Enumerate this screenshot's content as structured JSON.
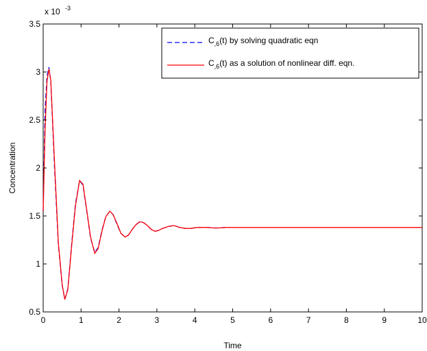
{
  "chart_data": {
    "type": "line",
    "title": "",
    "xlabel": "Time",
    "ylabel": "Concentration",
    "xlim": [
      0,
      10
    ],
    "ylim": [
      0.5,
      3.5
    ],
    "y_multiplier_base": "x 10",
    "y_multiplier_exponent": "-3",
    "xticks": [
      "0",
      "1",
      "2",
      "3",
      "4",
      "5",
      "6",
      "7",
      "8",
      "9",
      "10"
    ],
    "yticks": [
      "0.5",
      "1",
      "1.5",
      "2",
      "2.5",
      "3",
      "3.5"
    ],
    "grid": false,
    "legend_position": "top-right",
    "series": [
      {
        "name_main": "C",
        "name_sub": ",6",
        "name_rest": "(t) by solving quadratic eqn",
        "color": "#0000ff",
        "style": "dashed",
        "x": [
          0,
          0.05,
          0.1,
          0.15,
          0.2,
          0.3,
          0.4,
          0.5,
          0.57,
          0.65,
          0.75,
          0.85,
          0.96,
          1.05,
          1.15,
          1.25,
          1.36,
          1.45,
          1.55,
          1.65,
          1.76,
          1.85,
          1.95,
          2.05,
          2.16,
          2.25,
          2.35,
          2.45,
          2.55,
          2.65,
          2.75,
          2.85,
          2.95,
          3.05,
          3.15,
          3.3,
          3.45,
          3.6,
          3.75,
          3.9,
          4.05,
          4.2,
          4.35,
          4.5,
          4.65,
          4.8,
          4.9
        ],
        "y": [
          1.55,
          2.6,
          2.95,
          3.05,
          2.9,
          2.0,
          1.2,
          0.78,
          0.63,
          0.74,
          1.2,
          1.62,
          1.87,
          1.82,
          1.55,
          1.27,
          1.12,
          1.17,
          1.35,
          1.49,
          1.55,
          1.51,
          1.41,
          1.32,
          1.28,
          1.3,
          1.36,
          1.41,
          1.44,
          1.43,
          1.4,
          1.36,
          1.34,
          1.35,
          1.37,
          1.39,
          1.4,
          1.38,
          1.37,
          1.37,
          1.38,
          1.38,
          1.38,
          1.375,
          1.375,
          1.38,
          1.38
        ]
      },
      {
        "name_main": "C",
        "name_sub": ",6",
        "name_rest": "(t) as a solution of nonlinear diff. eqn.",
        "color": "#ff0000",
        "style": "solid",
        "x": [
          0,
          0.05,
          0.1,
          0.15,
          0.2,
          0.3,
          0.4,
          0.5,
          0.57,
          0.65,
          0.75,
          0.85,
          0.96,
          1.05,
          1.15,
          1.25,
          1.36,
          1.45,
          1.55,
          1.65,
          1.76,
          1.85,
          1.95,
          2.05,
          2.16,
          2.25,
          2.35,
          2.45,
          2.55,
          2.65,
          2.75,
          2.85,
          2.95,
          3.05,
          3.15,
          3.3,
          3.45,
          3.6,
          3.75,
          3.9,
          4.05,
          4.2,
          4.35,
          4.5,
          4.65,
          4.8,
          5.0,
          6.0,
          7.0,
          8.0,
          9.0,
          10.0
        ],
        "y": [
          1.55,
          2.4,
          2.9,
          3.03,
          2.92,
          2.05,
          1.22,
          0.79,
          0.63,
          0.73,
          1.18,
          1.6,
          1.87,
          1.83,
          1.56,
          1.28,
          1.11,
          1.16,
          1.34,
          1.49,
          1.55,
          1.51,
          1.42,
          1.32,
          1.28,
          1.3,
          1.36,
          1.41,
          1.44,
          1.43,
          1.4,
          1.36,
          1.34,
          1.35,
          1.37,
          1.39,
          1.4,
          1.38,
          1.37,
          1.37,
          1.38,
          1.38,
          1.38,
          1.375,
          1.375,
          1.38,
          1.38,
          1.38,
          1.38,
          1.38,
          1.38,
          1.38
        ]
      }
    ]
  }
}
